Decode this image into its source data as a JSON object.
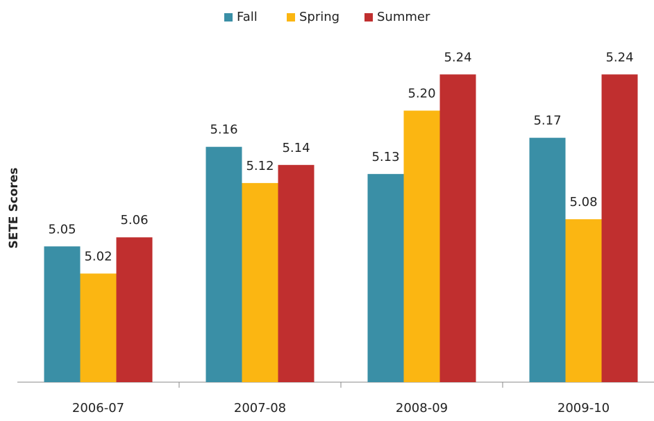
{
  "chart_data": {
    "type": "bar",
    "y_label": "SETE Scores",
    "categories": [
      "2006-07",
      "2007-08",
      "2008-09",
      "2009-10"
    ],
    "series": [
      {
        "name": "Fall",
        "color": "#3a8fa6",
        "values": [
          5.05,
          5.16,
          5.13,
          5.17
        ],
        "value_labels": [
          "5.05",
          "5.16",
          "5.13",
          "5.17"
        ]
      },
      {
        "name": "Spring",
        "color": "#fbb612",
        "values": [
          5.02,
          5.12,
          5.2,
          5.08
        ],
        "value_labels": [
          "5.02",
          "5.12",
          "5.20",
          "5.08"
        ]
      },
      {
        "name": "Summer",
        "color": "#c02f2f",
        "values": [
          5.06,
          5.14,
          5.24,
          5.24
        ],
        "value_labels": [
          "5.06",
          "5.14",
          "5.24",
          "5.24"
        ]
      }
    ],
    "ylim": [
      4.9,
      5.3
    ],
    "grid": false,
    "legend": "top"
  }
}
